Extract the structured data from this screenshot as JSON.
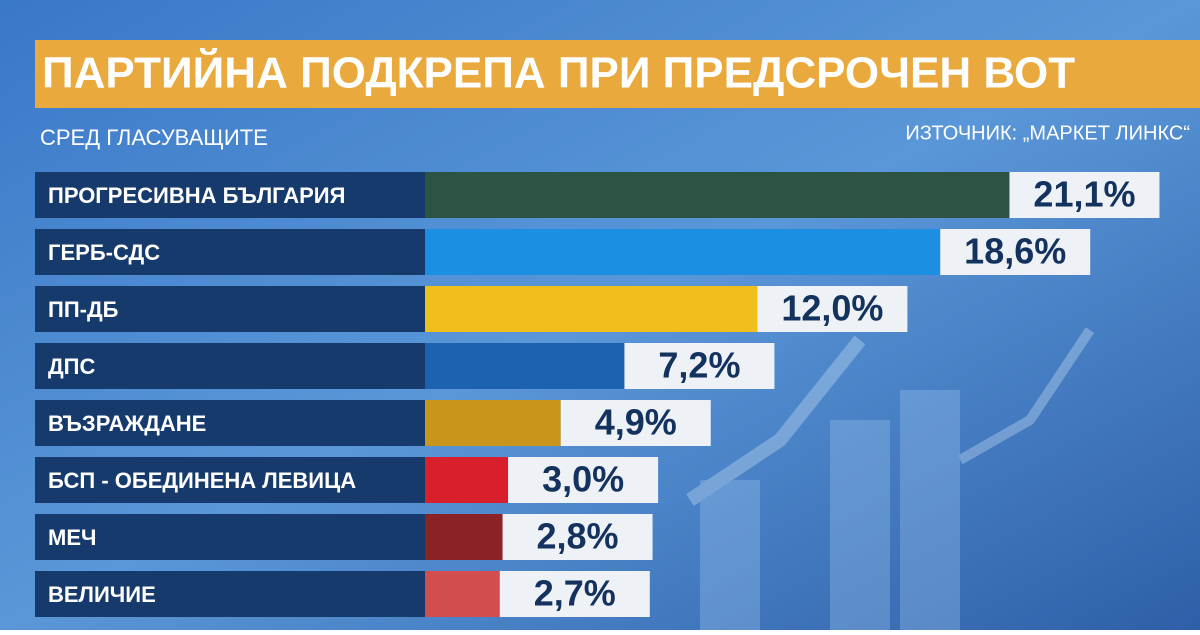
{
  "chart_data": {
    "type": "bar",
    "orientation": "horizontal",
    "title": "ПАРТИЙНА ПОДКРЕПА ПРИ ПРЕДСРОЧЕН ВОТ",
    "subtitle": "СРЕД ГЛАСУВАЩИТЕ",
    "source": "ИЗТОЧНИК: „МАРКЕТ ЛИНКС“",
    "categories": [
      "ПРОГРЕСИВНА БЪЛГАРИЯ",
      "ГЕРБ-СДС",
      "ПП-ДБ",
      "ДПС",
      "ВЪЗРАЖДАНЕ",
      "БСП - ОБЕДИНЕНА ЛЕВИЦА",
      "МЕЧ",
      "ВЕЛИЧИЕ"
    ],
    "values": [
      21.1,
      18.6,
      12.0,
      7.2,
      4.9,
      3.0,
      2.8,
      2.7
    ],
    "value_labels": [
      "21,1%",
      "18,6%",
      "12,0%",
      "7,2%",
      "4,9%",
      "3,0%",
      "2,8%",
      "2,7%"
    ],
    "colors": [
      "#2d5443",
      "#1c8fe3",
      "#f1bf1c",
      "#1d62b0",
      "#c9961b",
      "#d81f2b",
      "#8b2324",
      "#d24d4d"
    ]
  }
}
